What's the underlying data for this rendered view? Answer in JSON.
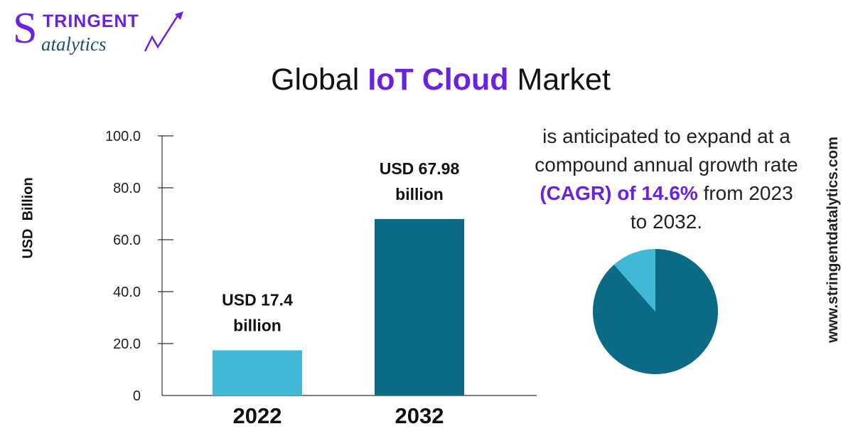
{
  "logo": {
    "line1": "TRINGENT",
    "initial": "S",
    "line2": "atalytics"
  },
  "title": {
    "prefix": "Global ",
    "highlight": "IoT Cloud",
    "suffix": " Market"
  },
  "description": {
    "text1": "is anticipated to expand at a compound annual growth rate ",
    "highlight": "(CAGR) of 14.6%",
    "text2": " from 2023 to 2032."
  },
  "website": "www.stringentdatalytics.com",
  "colors": {
    "accent": "#6a22e0",
    "bar_2022": "#41b8d5",
    "bar_2032": "#0b6b84",
    "pie_main": "#0b6b84",
    "pie_slice": "#41b8d5"
  },
  "chart_data": [
    {
      "type": "bar",
      "categories": [
        "2022",
        "2032"
      ],
      "values": [
        17.4,
        67.98
      ],
      "data_labels": [
        [
          "USD 17.4",
          "billion"
        ],
        [
          "USD 67.98",
          "billion"
        ]
      ],
      "yticks": [
        "100.0",
        "80.0",
        "60.0",
        "40.0",
        "20.0",
        "0"
      ],
      "ytick_values": [
        100,
        80,
        60,
        40,
        20,
        0
      ],
      "ylabel": "USD  Billion",
      "ylim": [
        0,
        100
      ]
    },
    {
      "type": "pie",
      "values": [
        0.885,
        0.115
      ]
    }
  ]
}
